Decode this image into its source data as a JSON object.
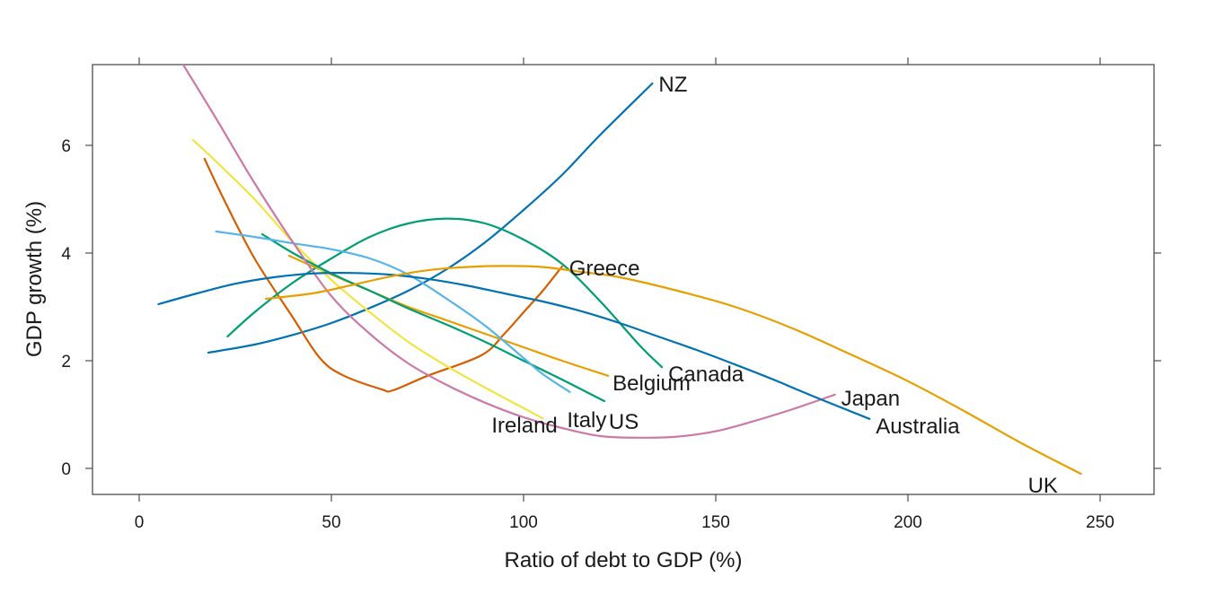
{
  "chart_data": {
    "type": "line",
    "title": "",
    "xlabel": "Ratio of debt to GDP (%)",
    "ylabel": "GDP growth (%)",
    "xlim": [
      -15,
      262
    ],
    "ylim": [
      -0.5,
      7.5
    ],
    "xticks": [
      0,
      50,
      100,
      150,
      200,
      250
    ],
    "yticks": [
      0,
      2,
      4,
      6
    ],
    "grid": false,
    "legend": "direct labels at line ends",
    "series": [
      {
        "name": "NZ",
        "color": "#0072B2",
        "x": [
          18,
          30,
          40,
          50,
          60,
          70,
          80,
          90,
          100,
          110,
          120,
          133.5
        ],
        "y": [
          2.15,
          2.3,
          2.48,
          2.7,
          2.98,
          3.3,
          3.7,
          4.2,
          4.8,
          5.45,
          6.2,
          7.15
        ]
      },
      {
        "name": "Greece",
        "color": "#D55E00",
        "x": [
          17,
          22,
          30,
          40,
          47,
          53,
          63,
          66,
          75,
          89,
          95,
          100,
          105,
          110
        ],
        "y": [
          5.75,
          5.0,
          3.9,
          2.8,
          2.05,
          1.73,
          1.47,
          1.45,
          1.72,
          2.1,
          2.5,
          2.9,
          3.3,
          3.75
        ]
      },
      {
        "name": "Canada",
        "color": "#009E73",
        "x": [
          23,
          30,
          40,
          50,
          60,
          70,
          80,
          90,
          100,
          110,
          120,
          130,
          136
        ],
        "y": [
          2.45,
          2.9,
          3.45,
          3.9,
          4.3,
          4.55,
          4.64,
          4.55,
          4.25,
          3.8,
          3.1,
          2.3,
          1.88
        ]
      },
      {
        "name": "Belgium",
        "color": "#E69F00",
        "x": [
          39,
          50,
          60,
          70,
          80,
          90,
          100,
          110,
          122
        ],
        "y": [
          3.95,
          3.6,
          3.3,
          3.0,
          2.75,
          2.5,
          2.25,
          2.0,
          1.72
        ]
      },
      {
        "name": "Ireland",
        "color": "#F0E442",
        "x": [
          14,
          20,
          30,
          40,
          50,
          60,
          70,
          80,
          90,
          105
        ],
        "y": [
          6.1,
          5.7,
          5.0,
          4.2,
          3.5,
          2.9,
          2.35,
          1.9,
          1.5,
          0.93
        ]
      },
      {
        "name": "US",
        "color": "#009E73",
        "x": [
          32,
          40,
          50,
          60,
          70,
          80,
          90,
          100,
          110,
          121
        ],
        "y": [
          4.35,
          4.0,
          3.62,
          3.3,
          2.97,
          2.67,
          2.35,
          2.0,
          1.65,
          1.25
        ]
      },
      {
        "name": "Italy",
        "color": "#56B4E9",
        "x": [
          20,
          30,
          40,
          50,
          60,
          70,
          80,
          90,
          100,
          105,
          112
        ],
        "y": [
          4.4,
          4.3,
          4.18,
          4.07,
          3.9,
          3.6,
          3.15,
          2.65,
          2.05,
          1.75,
          1.42
        ]
      },
      {
        "name": "Japan",
        "color": "#CC79A7",
        "x": [
          11,
          20,
          30,
          40,
          50,
          60,
          70,
          80,
          90,
          100,
          110,
          120,
          130,
          140,
          150,
          160,
          170,
          181
        ],
        "y": [
          7.55,
          6.5,
          5.3,
          4.2,
          3.2,
          2.5,
          1.95,
          1.55,
          1.22,
          0.95,
          0.75,
          0.6,
          0.57,
          0.59,
          0.69,
          0.88,
          1.1,
          1.37
        ]
      },
      {
        "name": "Australia",
        "color": "#0072B2",
        "x": [
          5,
          15,
          25,
          35,
          45,
          55,
          65,
          75,
          85,
          95,
          105,
          115,
          125,
          135,
          145,
          155,
          165,
          175,
          190
        ],
        "y": [
          3.05,
          3.25,
          3.43,
          3.55,
          3.62,
          3.63,
          3.6,
          3.52,
          3.4,
          3.25,
          3.1,
          2.92,
          2.7,
          2.45,
          2.2,
          1.93,
          1.65,
          1.35,
          0.92
        ]
      },
      {
        "name": "UK",
        "color": "#E69F00",
        "x": [
          33,
          45,
          55,
          65,
          75,
          85,
          95,
          105,
          115,
          125,
          140,
          155,
          170,
          185,
          200,
          215,
          230,
          245
        ],
        "y": [
          3.15,
          3.25,
          3.4,
          3.56,
          3.68,
          3.74,
          3.76,
          3.74,
          3.65,
          3.55,
          3.3,
          3.0,
          2.6,
          2.12,
          1.62,
          1.05,
          0.45,
          -0.1
        ]
      }
    ]
  }
}
